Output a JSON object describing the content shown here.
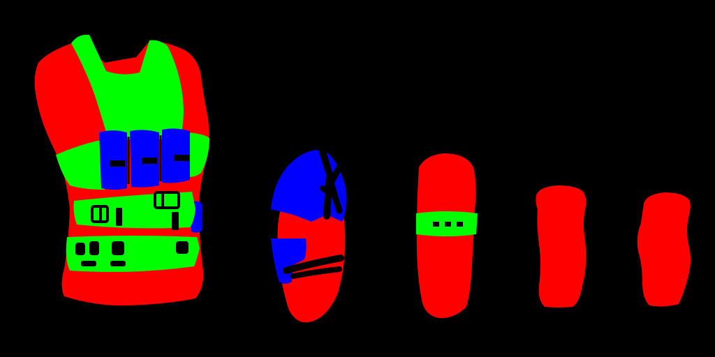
{
  "palette": {
    "background": "#000000",
    "fabric": "#ff0000",
    "straps": "#00ff00",
    "pouches": "#0000ff",
    "hardware": "#000000"
  },
  "parts": [
    {
      "name": "vest-torso",
      "icon": "vest-icon"
    },
    {
      "name": "shoulder-pad",
      "icon": "shoulder-pad-icon"
    },
    {
      "name": "arm-guard-strapped",
      "icon": "arm-guard-icon"
    },
    {
      "name": "leg-guard-left",
      "icon": "leg-guard-icon"
    },
    {
      "name": "leg-guard-right",
      "icon": "leg-guard-icon"
    }
  ]
}
